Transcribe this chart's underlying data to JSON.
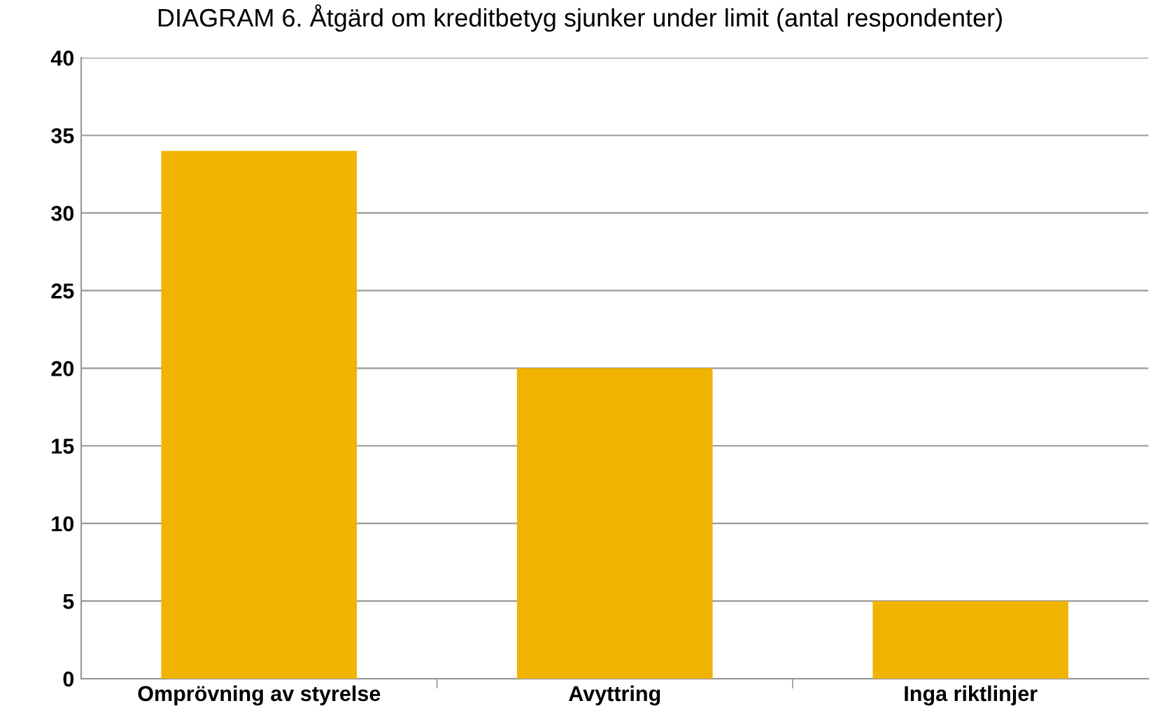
{
  "chart_data": {
    "type": "bar",
    "title": "DIAGRAM 6. Åtgärd om kreditbetyg sjunker under limit (antal respondenter)",
    "categories": [
      "Omprövning av styrelse",
      "Avyttring",
      "Inga riktlinjer"
    ],
    "values": [
      34,
      20,
      5
    ],
    "color": "#f0b400",
    "ylim": [
      0,
      40
    ],
    "yticks": [
      0,
      5,
      10,
      15,
      20,
      25,
      30,
      35,
      40
    ],
    "grid": "y"
  }
}
